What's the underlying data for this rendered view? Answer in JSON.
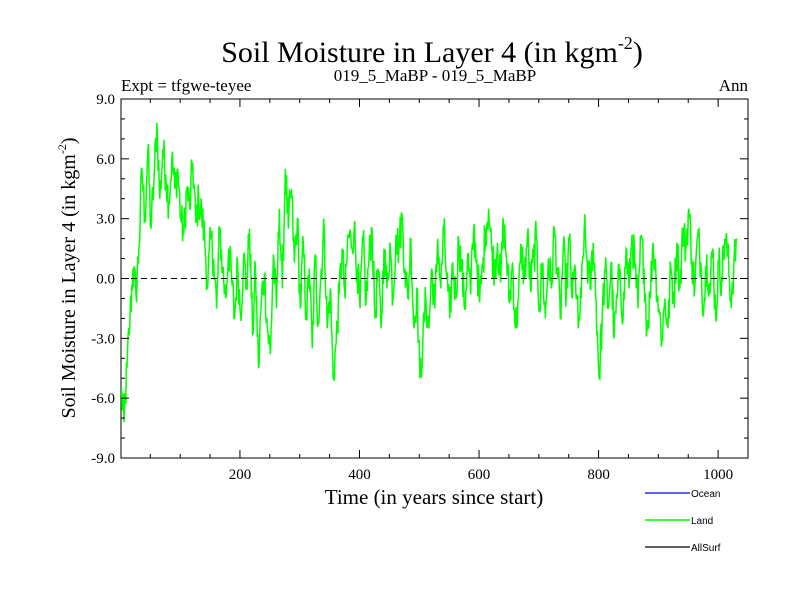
{
  "chart_data": {
    "type": "line",
    "title": "Soil Moisture in Layer 4 (in kgm",
    "title_superscript": "-2",
    "title_close": ")",
    "subtitle_left": "Expt = tfgwe-teyee",
    "subtitle_center": "019_5_MaBP - 019_5_MaBP",
    "subtitle_right": "Ann",
    "xlabel": "Time (in years since start)",
    "ylabel": "Soil Moisture in Layer 4 (in kgm",
    "ylabel_superscript": "-2",
    "ylabel_close": ")",
    "xlim": [
      1,
      1050
    ],
    "ylim": [
      -9.0,
      9.0
    ],
    "yticks": [
      -9.0,
      -6.0,
      -3.0,
      0.0,
      3.0,
      6.0,
      9.0
    ],
    "ytick_labels": [
      "-9.0",
      "-6.0",
      "-3.0",
      "0.0",
      "3.0",
      "6.0",
      "9.0"
    ],
    "xticks": [
      200,
      400,
      600,
      800,
      1000
    ],
    "xtick_labels": [
      "200",
      "400",
      "600",
      "800",
      "1000"
    ],
    "zero_line": 0.0,
    "series": [
      {
        "name": "Land",
        "color": "#00ff00",
        "x_start": 1,
        "x_step": 5,
        "values": [
          -5.5,
          -7.2,
          -4.5,
          -2.0,
          0.5,
          -0.8,
          1.5,
          5.5,
          3.0,
          6.5,
          2.5,
          4.8,
          7.8,
          4.0,
          6.5,
          5.2,
          3.8,
          6.0,
          4.5,
          5.5,
          3.0,
          2.2,
          4.5,
          3.5,
          5.8,
          2.8,
          4.0,
          3.2,
          2.0,
          -0.5,
          2.0,
          1.0,
          -1.5,
          2.5,
          0.5,
          -1.0,
          1.5,
          0.0,
          -2.0,
          0.8,
          -1.8,
          1.0,
          -0.5,
          2.5,
          -2.8,
          0.5,
          -4.5,
          -1.0,
          0.2,
          -2.5,
          -3.8,
          1.2,
          -1.5,
          3.5,
          -0.5,
          5.5,
          2.5,
          4.5,
          0.8,
          3.0,
          -1.5,
          1.8,
          -2.0,
          0.5,
          -3.5,
          1.2,
          -2.2,
          0.5,
          2.5,
          -2.5,
          -0.5,
          -5.0,
          -3.2,
          -0.8,
          1.5,
          -1.0,
          2.2,
          1.8,
          2.5,
          0.5,
          -1.5,
          2.0,
          -1.2,
          1.0,
          2.5,
          -2.0,
          0.5,
          -2.5,
          1.5,
          -0.5,
          1.8,
          -1.0,
          2.2,
          1.5,
          3.2,
          0.5,
          -1.0,
          2.0,
          -2.5,
          -0.5,
          -5.0,
          -3.2,
          -1.0,
          -2.5,
          0.5,
          -1.5,
          2.0,
          -0.5,
          2.5,
          0.0,
          -2.0,
          0.8,
          -1.0,
          2.0,
          0.5,
          -1.5,
          1.2,
          -0.8,
          2.5,
          1.0,
          -1.2,
          0.5,
          2.5,
          3.5,
          1.5,
          0.5,
          1.8,
          -0.2,
          2.8,
          1.0,
          -1.2,
          0.8,
          -2.5,
          -1.0,
          1.5,
          0.0,
          2.2,
          -0.5,
          1.0,
          2.0,
          -1.5,
          0.8,
          -2.0,
          1.0,
          -0.5,
          2.5,
          0.5,
          -2.0,
          1.5,
          -0.8,
          2.0,
          -1.0,
          0.5,
          -2.5,
          -1.0,
          2.5,
          0.8,
          -0.5,
          1.8,
          -1.2,
          -5.0,
          -2.0,
          0.5,
          -1.5,
          0.8,
          -3.0,
          -1.0,
          0.5,
          -2.0,
          1.5,
          -0.5,
          2.2,
          0.5,
          -1.5,
          2.0,
          0.5,
          -2.5,
          -1.0,
          1.8,
          0.2,
          -1.5,
          -3.0,
          -1.0,
          -2.5,
          0.5,
          -1.0,
          1.8,
          -0.5,
          2.5,
          1.5,
          3.5,
          1.0,
          -0.5,
          2.2,
          0.8,
          -1.5,
          1.2,
          -0.8,
          1.5,
          -2.0,
          0.8,
          0.0,
          2.0,
          1.2,
          -1.0,
          0.5,
          2.0
        ],
        "hidden_detail": "series drawn as dense green trace"
      },
      {
        "name": "Ocean",
        "color": "#0000ff",
        "values": []
      },
      {
        "name": "AllSurf",
        "color": "#000000",
        "values": []
      }
    ],
    "legend": [
      {
        "name": "Ocean",
        "color": "#0000ff"
      },
      {
        "name": "Land",
        "color": "#00ff00"
      },
      {
        "name": "AllSurf",
        "color": "#000000"
      }
    ],
    "legend_position": "bottom-right"
  }
}
